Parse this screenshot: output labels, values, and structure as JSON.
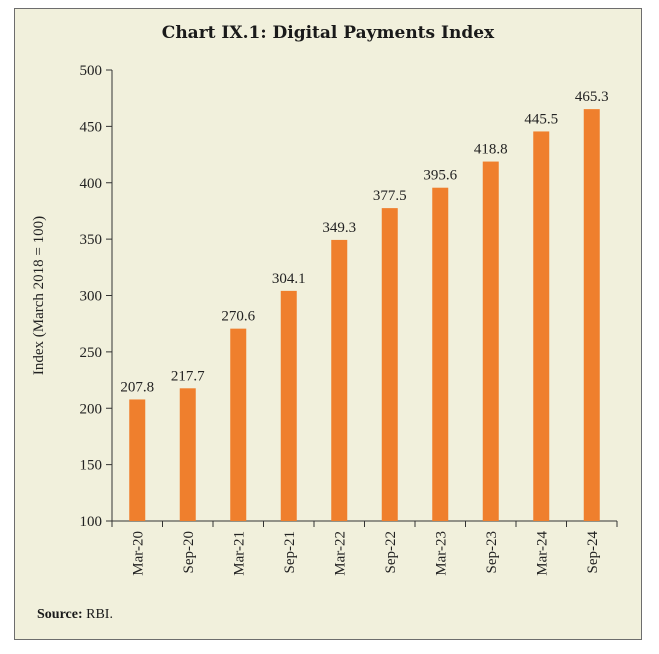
{
  "chart_data": {
    "type": "bar",
    "title": "Chart IX.1: Digital Payments Index",
    "xlabel": "",
    "ylabel": "Index (March 2018 = 100)",
    "categories": [
      "Mar-20",
      "Sep-20",
      "Mar-21",
      "Sep-21",
      "Mar-22",
      "Sep-22",
      "Mar-23",
      "Sep-23",
      "Mar-24",
      "Sep-24"
    ],
    "values": [
      207.8,
      217.7,
      270.6,
      304.1,
      349.3,
      377.5,
      395.6,
      418.8,
      445.5,
      465.3
    ],
    "value_labels": [
      "207.8",
      "217.7",
      "270.6",
      "304.1",
      "349.3",
      "377.5",
      "395.6",
      "418.8",
      "445.5",
      "465.3"
    ],
    "ylim": [
      100,
      500
    ],
    "yticks": [
      100,
      150,
      200,
      250,
      300,
      350,
      400,
      450,
      500
    ],
    "grid": false,
    "legend": "none",
    "bar_color": "#ef7f2d"
  },
  "source": {
    "label": "Source:",
    "text": " RBI."
  }
}
